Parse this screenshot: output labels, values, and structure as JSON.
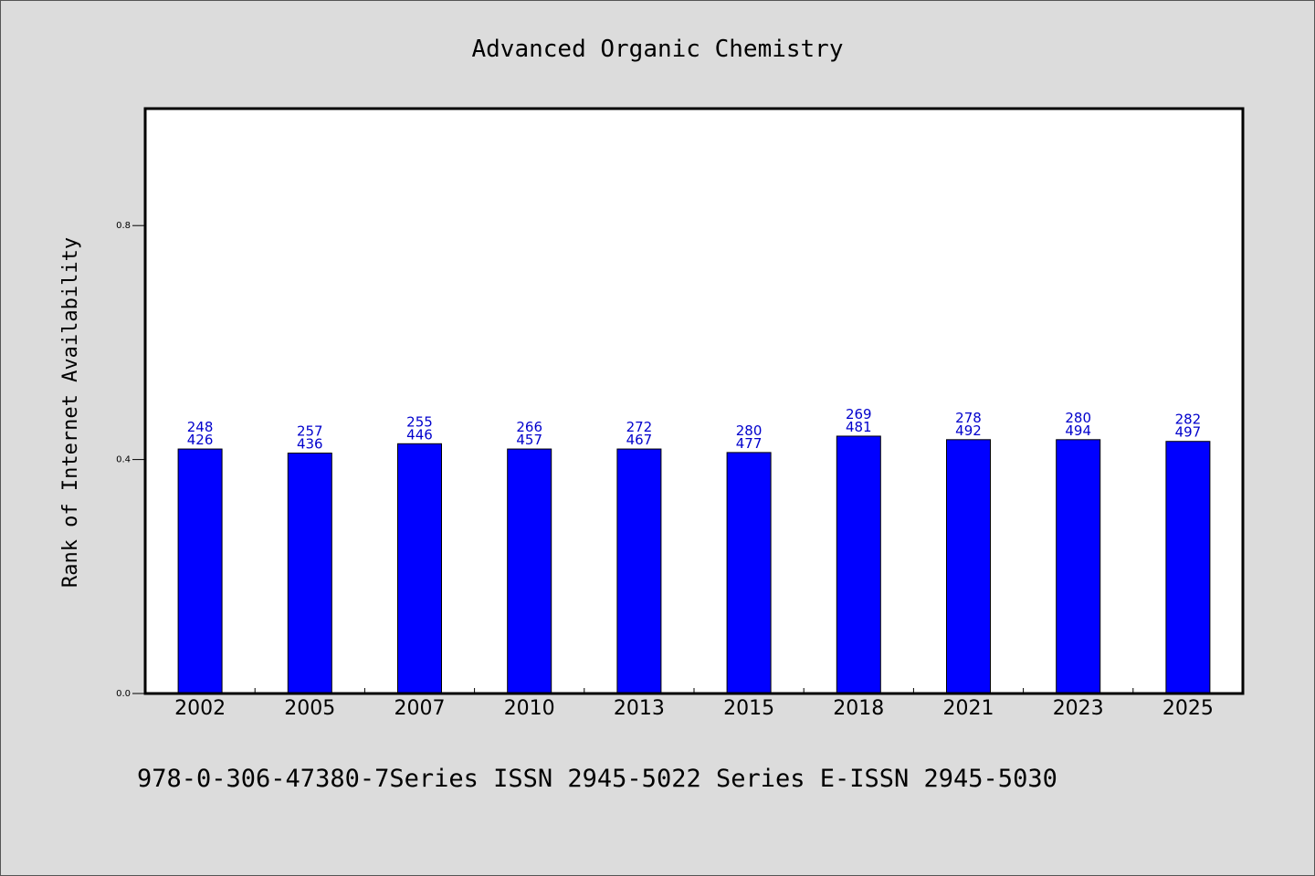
{
  "chart_data": {
    "type": "bar",
    "title": "Advanced Organic Chemistry",
    "xlabel": "",
    "ylabel": "Rank of Internet Availability",
    "ylim": [
      0,
      1.0
    ],
    "yticks": [
      0.0,
      0.4,
      0.8
    ],
    "ytick_labels": [
      "0.0",
      "0.4",
      "0.8"
    ],
    "categories": [
      "2002",
      "2005",
      "2007",
      "2010",
      "2013",
      "2015",
      "2018",
      "2021",
      "2023",
      "2025"
    ],
    "values": [
      0.418,
      0.411,
      0.427,
      0.418,
      0.418,
      0.412,
      0.44,
      0.434,
      0.434,
      0.431
    ],
    "data_labels_top": [
      "248",
      "257",
      "255",
      "266",
      "272",
      "280",
      "269",
      "278",
      "280",
      "282"
    ],
    "data_labels_bottom": [
      "426",
      "436",
      "446",
      "457",
      "467",
      "477",
      "481",
      "492",
      "494",
      "497"
    ],
    "bar_color": "#0000ff",
    "label_color": "#0000cc",
    "grid": false,
    "legend": false
  },
  "footer": {
    "text": "978-0-306-47380-7Series ISSN 2945-5022 Series E-ISSN 2945-5030"
  },
  "colors": {
    "background": "#dcdcdc",
    "plot_background": "#ffffff"
  }
}
